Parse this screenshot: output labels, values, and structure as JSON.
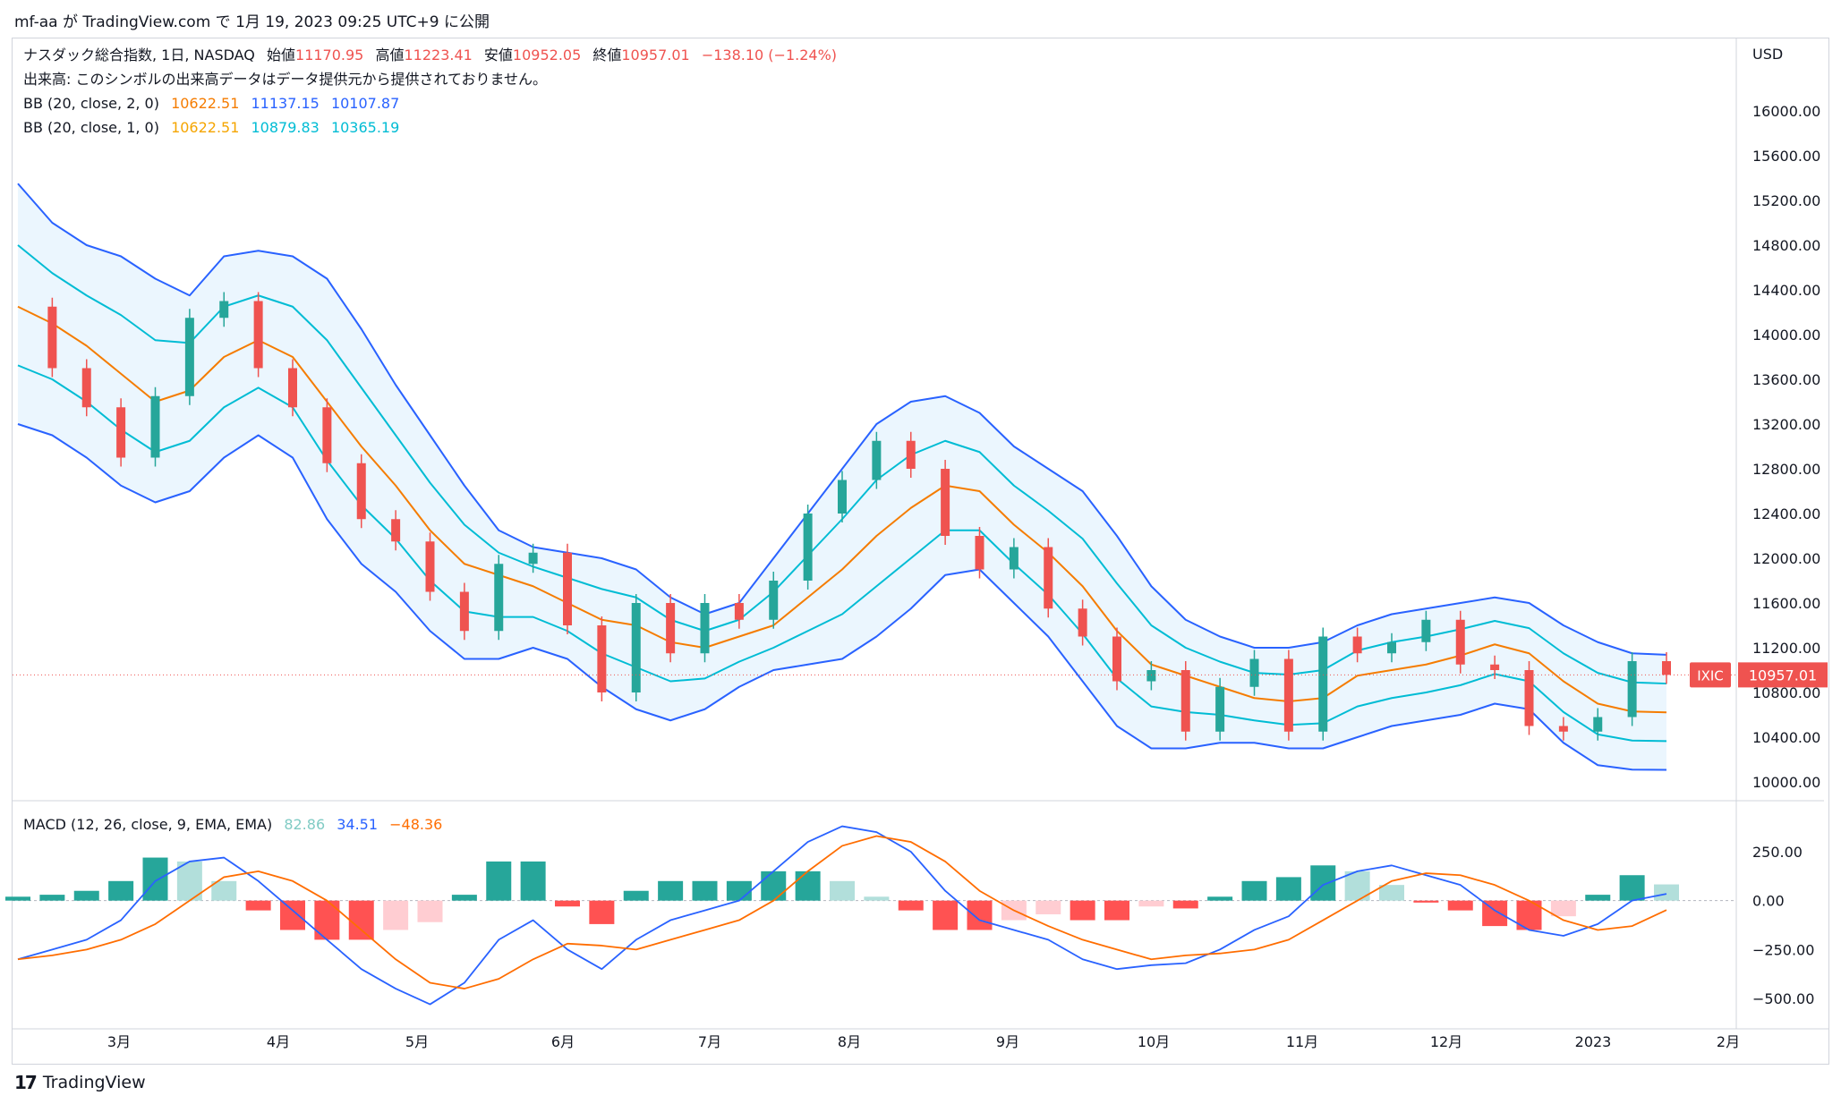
{
  "header": {
    "text": "mf-aa が TradingView.com で 1月 19, 2023 09:25 UTC+9 に公開"
  },
  "footer": {
    "logo_text": "TradingView"
  },
  "legend": {
    "title": "ナスダック総合指数, 1日, NASDAQ",
    "open_label": "始値",
    "open_value": "11170.95",
    "high_label": "高値",
    "high_value": "11223.41",
    "low_label": "安値",
    "low_value": "10952.05",
    "close_label": "終値",
    "close_value": "10957.01",
    "change": "−138.10 (−1.24%)",
    "volume_note": "出来高: このシンボルの出来高データはデータ提供元から提供されておりません。",
    "bb1_label": "BB (20, close, 2, 0)",
    "bb1_values": [
      "10622.51",
      "11137.15",
      "10107.87"
    ],
    "bb2_label": "BB (20, close, 1, 0)",
    "bb2_values": [
      "10622.51",
      "10879.83",
      "10365.19"
    ],
    "macd_label": "MACD (12, 26, close, 9, EMA, EMA)",
    "macd_values": [
      "82.86",
      "34.51",
      "−48.36"
    ]
  },
  "price_axis": {
    "currency": "USD",
    "ticks": [
      "16000.00",
      "15600.00",
      "15200.00",
      "14800.00",
      "14400.00",
      "14000.00",
      "13600.00",
      "13200.00",
      "12800.00",
      "12400.00",
      "12000.00",
      "11600.00",
      "11200.00",
      "10800.00",
      "10400.00",
      "10000.00"
    ],
    "last_symbol": "IXIC",
    "last_price": "10957.01"
  },
  "macd_axis": {
    "ticks": [
      "250.00",
      "0.00",
      "−250.00",
      "−500.00"
    ]
  },
  "time_axis": {
    "labels": [
      "3月",
      "4月",
      "5月",
      "6月",
      "7月",
      "8月",
      "9月",
      "10月",
      "11月",
      "12月",
      "2023",
      "2月"
    ]
  },
  "colors": {
    "up": "#26a69a",
    "down": "#ef5350",
    "bb_outer": "#2962ff",
    "bb_inner": "#00bcd4",
    "basis": "#f57c00",
    "fill": "#e3f2fd",
    "macd_line": "#2962ff",
    "signal_line": "#ff6d00",
    "hist_up_strong": "#26a69a",
    "hist_up_weak": "#b2dfdb",
    "hist_down_strong": "#ff5252",
    "hist_down_weak": "#ffcdd2"
  },
  "chart_data": {
    "type": "candlestick",
    "symbol": "NASDAQ Composite (IXIC)",
    "ylim": [
      9900,
      16150
    ],
    "dates": [
      "2022-02-14",
      "2022-02-21",
      "2022-02-28",
      "2022-03-07",
      "2022-03-14",
      "2022-03-21",
      "2022-03-28",
      "2022-04-04",
      "2022-04-11",
      "2022-04-18",
      "2022-04-25",
      "2022-05-02",
      "2022-05-09",
      "2022-05-16",
      "2022-05-23",
      "2022-05-30",
      "2022-06-06",
      "2022-06-13",
      "2022-06-20",
      "2022-06-27",
      "2022-07-04",
      "2022-07-11",
      "2022-07-18",
      "2022-07-25",
      "2022-08-01",
      "2022-08-08",
      "2022-08-15",
      "2022-08-22",
      "2022-08-29",
      "2022-09-05",
      "2022-09-12",
      "2022-09-19",
      "2022-09-26",
      "2022-10-03",
      "2022-10-10",
      "2022-10-17",
      "2022-10-24",
      "2022-10-31",
      "2022-11-07",
      "2022-11-14",
      "2022-11-21",
      "2022-11-28",
      "2022-12-05",
      "2022-12-12",
      "2022-12-19",
      "2022-12-26",
      "2023-01-02",
      "2023-01-09",
      "2023-01-16"
    ],
    "close": [
      14250,
      13700,
      13350,
      12900,
      13450,
      14150,
      14300,
      13700,
      13350,
      12850,
      12350,
      12150,
      11700,
      11350,
      11950,
      12050,
      11400,
      10800,
      11600,
      11150,
      11600,
      11450,
      11800,
      12400,
      12700,
      13050,
      12800,
      12200,
      11900,
      12100,
      11550,
      11300,
      10900,
      11000,
      10450,
      10850,
      11100,
      10450,
      11300,
      11150,
      11250,
      11450,
      11050,
      11000,
      10500,
      10450,
      10580,
      11080,
      10957
    ],
    "bb_basis": [
      14250,
      14100,
      13900,
      13650,
      13400,
      13500,
      13800,
      13950,
      13800,
      13400,
      13000,
      12650,
      12250,
      11950,
      11850,
      11750,
      11600,
      11450,
      11400,
      11250,
      11200,
      11300,
      11400,
      11650,
      11900,
      12200,
      12450,
      12650,
      12600,
      12300,
      12050,
      11750,
      11350,
      11050,
      10950,
      10850,
      10750,
      10720,
      10750,
      10950,
      11000,
      11050,
      11130,
      11230,
      11150,
      10900,
      10700,
      10630,
      10622
    ],
    "bb_upper": [
      15350,
      15000,
      14800,
      14700,
      14500,
      14350,
      14700,
      14750,
      14700,
      14500,
      14050,
      13550,
      13100,
      12650,
      12250,
      12100,
      12050,
      12000,
      11900,
      11650,
      11500,
      11600,
      12000,
      12400,
      12800,
      13200,
      13400,
      13450,
      13300,
      13000,
      12800,
      12600,
      12200,
      11750,
      11450,
      11300,
      11200,
      11200,
      11250,
      11400,
      11500,
      11550,
      11600,
      11650,
      11600,
      11400,
      11250,
      11150,
      11137
    ],
    "bb_lower": [
      13200,
      13100,
      12900,
      12650,
      12500,
      12600,
      12900,
      13100,
      12900,
      12350,
      11950,
      11700,
      11350,
      11100,
      11100,
      11200,
      11100,
      10850,
      10650,
      10550,
      10650,
      10850,
      11000,
      11050,
      11100,
      11300,
      11550,
      11850,
      11900,
      11600,
      11300,
      10900,
      10500,
      10300,
      10300,
      10350,
      10350,
      10300,
      10300,
      10400,
      10500,
      10550,
      10600,
      10700,
      10650,
      10350,
      10150,
      10110,
      10108
    ],
    "macd": [
      -300,
      -250,
      -200,
      -100,
      100,
      200,
      220,
      100,
      -50,
      -200,
      -350,
      -450,
      -530,
      -420,
      -200,
      -100,
      -250,
      -350,
      -200,
      -100,
      -50,
      0,
      150,
      300,
      380,
      350,
      250,
      50,
      -100,
      -150,
      -200,
      -300,
      -350,
      -330,
      -320,
      -250,
      -150,
      -80,
      80,
      150,
      180,
      130,
      80,
      -50,
      -150,
      -180,
      -120,
      0,
      34.51
    ],
    "signal": [
      -300,
      -280,
      -250,
      -200,
      -120,
      0,
      120,
      150,
      100,
      0,
      -150,
      -300,
      -420,
      -450,
      -400,
      -300,
      -220,
      -230,
      -250,
      -200,
      -150,
      -100,
      0,
      150,
      280,
      330,
      300,
      200,
      50,
      -50,
      -130,
      -200,
      -250,
      -300,
      -280,
      -270,
      -250,
      -200,
      -100,
      0,
      100,
      140,
      130,
      80,
      0,
      -100,
      -150,
      -130,
      -48.36
    ],
    "histogram": [
      20,
      30,
      50,
      100,
      220,
      200,
      100,
      -50,
      -150,
      -200,
      -200,
      -150,
      -110,
      30,
      200,
      200,
      -30,
      -120,
      50,
      100,
      100,
      100,
      150,
      150,
      100,
      20,
      -50,
      -150,
      -150,
      -100,
      -70,
      -100,
      -100,
      -30,
      -40,
      20,
      100,
      120,
      180,
      150,
      80,
      -10,
      -50,
      -130,
      -150,
      -80,
      30,
      130,
      82.86
    ],
    "macd_ylim": [
      -600,
      320
    ]
  }
}
